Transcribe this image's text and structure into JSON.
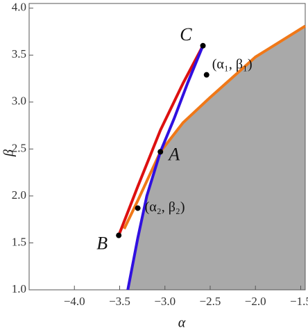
{
  "chart_data": {
    "type": "line",
    "xlabel": "α",
    "ylabel": "β",
    "xlim": [
      -4.5,
      -1.45
    ],
    "ylim": [
      1.0,
      4.05
    ],
    "xticks": [
      {
        "value": -4,
        "label": "−4.0"
      },
      {
        "value": -3.5,
        "label": "−3.5"
      },
      {
        "value": -3,
        "label": "−3.0"
      },
      {
        "value": -2.5,
        "label": "−2.5"
      },
      {
        "value": -2,
        "label": "−2.0"
      },
      {
        "value": -1.5,
        "label": "−1.5"
      }
    ],
    "yticks": [
      {
        "value": 1,
        "label": "1.0"
      },
      {
        "value": 1.5,
        "label": "1.5"
      },
      {
        "value": 2,
        "label": "2.0"
      },
      {
        "value": 2.5,
        "label": "2.5"
      },
      {
        "value": 3,
        "label": "3.0"
      },
      {
        "value": 3.5,
        "label": "3.5"
      },
      {
        "value": 4,
        "label": "4.0"
      }
    ],
    "region_color": "#a9a9a9",
    "series": [
      {
        "color": "#f07818",
        "x": [
          -3.45,
          -3.3,
          -3.05,
          -2.8,
          -2.5,
          -2.0,
          -1.45
        ],
        "values": [
          1.65,
          1.95,
          2.47,
          2.78,
          3.05,
          3.48,
          3.81
        ]
      },
      {
        "color": "#dd1010",
        "x": [
          -3.51,
          -3.3,
          -3.05,
          -2.8,
          -2.58
        ],
        "values": [
          1.58,
          2.1,
          2.7,
          3.2,
          3.6
        ]
      },
      {
        "color": "#3010e0",
        "x": [
          -2.58,
          -2.75,
          -2.9,
          -3.05,
          -3.2,
          -3.3,
          -3.41
        ],
        "values": [
          3.6,
          3.2,
          2.82,
          2.47,
          2.0,
          1.55,
          1.0
        ]
      }
    ],
    "points": [
      {
        "label": "C",
        "x": -2.58,
        "y": 3.6
      },
      {
        "label": "A",
        "x": -3.05,
        "y": 2.47
      },
      {
        "label": "B",
        "x": -3.51,
        "y": 1.58
      },
      {
        "label": "(α₁, β₁)",
        "x": -2.54,
        "y": 3.29
      },
      {
        "label": "(α₂, β₂)",
        "x": -3.3,
        "y": 1.87
      }
    ]
  }
}
